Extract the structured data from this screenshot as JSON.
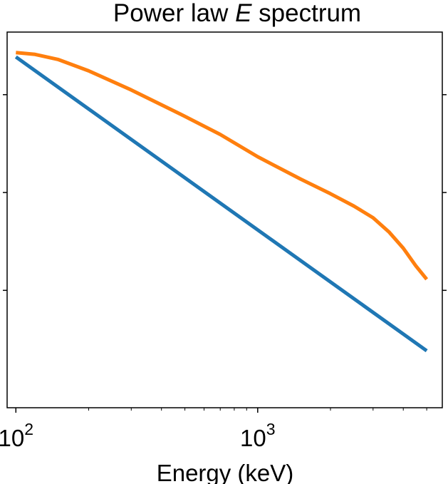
{
  "chart_data": {
    "type": "line",
    "title": {
      "prefix": "Power law ",
      "italic": "E",
      "suffix": " spectrum"
    },
    "xlabel": "Energy (keV)",
    "ylabel": "",
    "xscale": "log",
    "yscale": "log",
    "xlim": [
      92,
      5800
    ],
    "ylim": [
      0.0029,
      1.4
    ],
    "x_major_ticks": [
      {
        "value": 100,
        "base": "10",
        "exp": "2"
      },
      {
        "value": 1000,
        "base": "10",
        "exp": "3"
      }
    ],
    "x_minor_ticks": [
      200,
      300,
      400,
      500,
      600,
      700,
      800,
      900,
      2000,
      3000,
      4000,
      5000
    ],
    "y_ticks": [
      0.5,
      0.1,
      0.02
    ],
    "y_tick_labels_shown": false,
    "grid": false,
    "series": [
      {
        "color": "#1f77b4",
        "x": [
          100,
          5000
        ],
        "y": [
          0.93,
          0.0074
        ]
      },
      {
        "color": "#ff7f0e",
        "x": [
          100,
          120,
          150,
          200,
          300,
          500,
          700,
          1000,
          1500,
          2000,
          2500,
          3000,
          3500,
          4000,
          4500,
          5000
        ],
        "y": [
          1.0,
          0.97,
          0.89,
          0.74,
          0.54,
          0.35,
          0.26,
          0.18,
          0.125,
          0.098,
          0.08,
          0.066,
          0.052,
          0.04,
          0.03,
          0.024
        ]
      }
    ]
  }
}
